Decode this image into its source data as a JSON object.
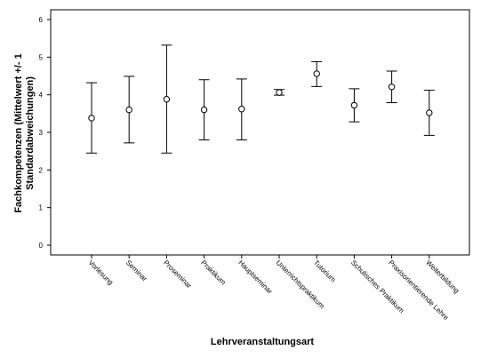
{
  "chart_data": {
    "type": "errorbar",
    "xlabel": "Lehrveranstaltungsart",
    "ylabel_line1": "Fachkompetenzen (Mittelwert +/- 1",
    "ylabel_line2": "Standardabweichungen)",
    "ylim": [
      0,
      6
    ],
    "yticks": [
      "0",
      "1",
      "2",
      "3",
      "4",
      "5",
      "6"
    ],
    "grid": false,
    "categories": [
      "Vorlesung",
      "Seminar",
      "Proseminar",
      "Praktikum",
      "Hauptseminar",
      "Unterrichtspraktikum",
      "Tutorium",
      "Schulisches Praktikum",
      "Praxisorientierende Lehre",
      "Weiterbildung"
    ],
    "series": [
      {
        "means": [
          3.38,
          3.6,
          3.88,
          3.6,
          3.62,
          4.06,
          4.56,
          3.72,
          4.21,
          3.52
        ],
        "lower": [
          2.45,
          2.72,
          2.45,
          2.8,
          2.8,
          3.99,
          4.22,
          3.28,
          3.79,
          2.92
        ],
        "upper": [
          4.32,
          4.49,
          5.32,
          4.4,
          4.42,
          4.14,
          4.88,
          4.16,
          4.63,
          4.12
        ]
      }
    ],
    "colors": {
      "axis": "#000000",
      "marker": "#000000",
      "background": "#ffffff"
    }
  }
}
